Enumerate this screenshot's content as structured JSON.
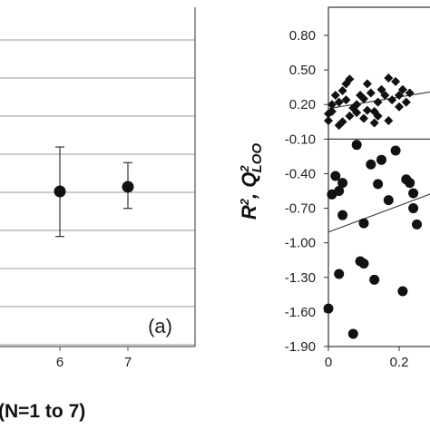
{
  "chart_data": [
    {
      "type": "scatter",
      "panel_label": "(a)",
      "xlabel": "(N=1 to 7)",
      "x_tick_labels": [
        "6",
        "7"
      ],
      "grid": true,
      "series": [
        {
          "points": [
            {
              "x": 6,
              "y": 0.0,
              "err_low": -0.69,
              "err_high": 0.68
            },
            {
              "x": 7,
              "y": 0.07,
              "err_low": -0.33,
              "err_high": 0.37
            }
          ]
        }
      ]
    },
    {
      "type": "scatter",
      "ylabel_parts": {
        "r": "R",
        "r_sup": "2",
        "sep": ", ",
        "q": "Q",
        "q_sup": "2",
        "q_sub": "LOO"
      },
      "y_tick_labels": [
        "0.80",
        "0.50",
        "0.20",
        "-0.10",
        "-0.40",
        "-0.70",
        "-1.00",
        "-1.30",
        "-1.60",
        "-1.90"
      ],
      "x_tick_labels": [
        "0",
        "0.2"
      ],
      "ylim": [
        -1.9,
        1.0
      ],
      "series": [
        {
          "marker": "diamond",
          "points": [
            [
              0.0,
              0.12
            ],
            [
              0.0,
              0.06
            ],
            [
              0.01,
              0.2
            ],
            [
              0.01,
              0.14
            ],
            [
              0.02,
              0.28
            ],
            [
              0.03,
              0.22
            ],
            [
              0.04,
              0.32
            ],
            [
              0.05,
              0.24
            ],
            [
              0.05,
              0.38
            ],
            [
              0.06,
              0.42
            ],
            [
              0.07,
              0.17
            ],
            [
              0.08,
              0.2
            ],
            [
              0.09,
              0.28
            ],
            [
              0.1,
              0.25
            ],
            [
              0.11,
              0.38
            ],
            [
              0.12,
              0.3
            ],
            [
              0.13,
              0.14
            ],
            [
              0.14,
              0.22
            ],
            [
              0.15,
              0.33
            ],
            [
              0.16,
              0.28
            ],
            [
              0.17,
              0.43
            ],
            [
              0.18,
              0.24
            ],
            [
              0.19,
              0.4
            ],
            [
              0.2,
              0.28
            ],
            [
              0.21,
              0.33
            ],
            [
              0.22,
              0.22
            ],
            [
              0.23,
              0.3
            ],
            [
              0.03,
              0.02
            ],
            [
              0.04,
              0.05
            ],
            [
              0.06,
              0.1
            ],
            [
              0.08,
              0.13
            ],
            [
              0.1,
              0.08
            ],
            [
              0.11,
              0.15
            ],
            [
              0.13,
              0.04
            ],
            [
              0.14,
              0.1
            ],
            [
              0.17,
              0.06
            ],
            [
              0.2,
              0.18
            ]
          ]
        },
        {
          "marker": "circle",
          "points": [
            [
              0.0,
              -1.57
            ],
            [
              0.01,
              -0.58
            ],
            [
              0.02,
              -0.42
            ],
            [
              0.03,
              -1.27
            ],
            [
              0.03,
              -0.55
            ],
            [
              0.04,
              -0.76
            ],
            [
              0.04,
              -0.48
            ],
            [
              0.07,
              -1.79
            ],
            [
              0.08,
              -0.15
            ],
            [
              0.09,
              -1.16
            ],
            [
              0.1,
              -1.18
            ],
            [
              0.1,
              -0.83
            ],
            [
              0.12,
              -0.32
            ],
            [
              0.13,
              -1.32
            ],
            [
              0.14,
              -0.49
            ],
            [
              0.15,
              -0.28
            ],
            [
              0.17,
              -0.63
            ],
            [
              0.19,
              -0.2
            ],
            [
              0.21,
              -1.42
            ],
            [
              0.22,
              -0.45
            ],
            [
              0.23,
              -0.48
            ],
            [
              0.24,
              -0.57
            ],
            [
              0.24,
              -0.7
            ],
            [
              0.25,
              -0.84
            ]
          ]
        }
      ]
    }
  ]
}
